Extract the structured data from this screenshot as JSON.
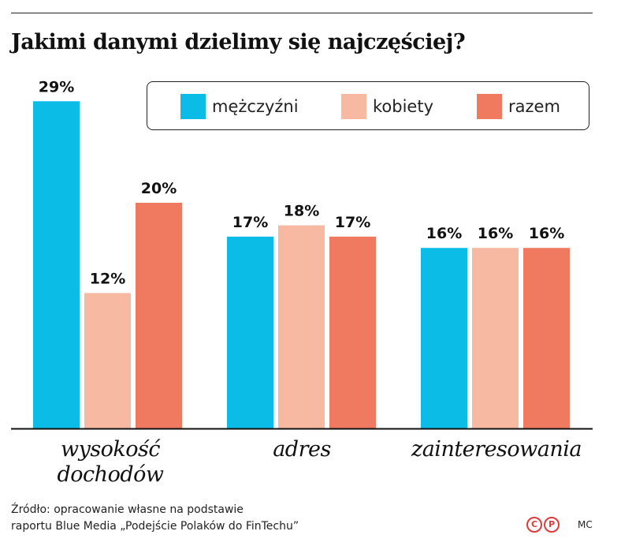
{
  "title": "Jakimi danymi dzielimy się najczęściej?",
  "colors": {
    "men": "#0bbde6",
    "women": "#f7b9a2",
    "total": "#f07a5f"
  },
  "legend": {
    "men": "mężczyźni",
    "women": "kobiety",
    "total": "razem"
  },
  "categories_display": {
    "c0_line1": "wysokość",
    "c0_line2": "dochodów",
    "c1": "adres",
    "c2": "zainteresowania"
  },
  "chart_data": {
    "type": "bar",
    "title": "Jakimi danymi dzielimy się najczęściej?",
    "categories": [
      "wysokość dochodów",
      "adres",
      "zainteresowania"
    ],
    "series": [
      {
        "name": "mężczyźni",
        "values": [
          29,
          17,
          16
        ],
        "labels": [
          "29%",
          "17%",
          "16%"
        ]
      },
      {
        "name": "kobiety",
        "values": [
          12,
          18,
          16
        ],
        "labels": [
          "12%",
          "18%",
          "16%"
        ]
      },
      {
        "name": "razem",
        "values": [
          20,
          17,
          16
        ],
        "labels": [
          "20%",
          "17%",
          "16%"
        ]
      }
    ],
    "unit": "%",
    "ylim": [
      0,
      30
    ],
    "grid": false,
    "legend_position": "top-right"
  },
  "source": {
    "line1": "Źródło: opracowanie własne na podstawie",
    "line2": "raportu Blue Media „Podejście Polaków do FinTechu”"
  },
  "credit": "MC"
}
